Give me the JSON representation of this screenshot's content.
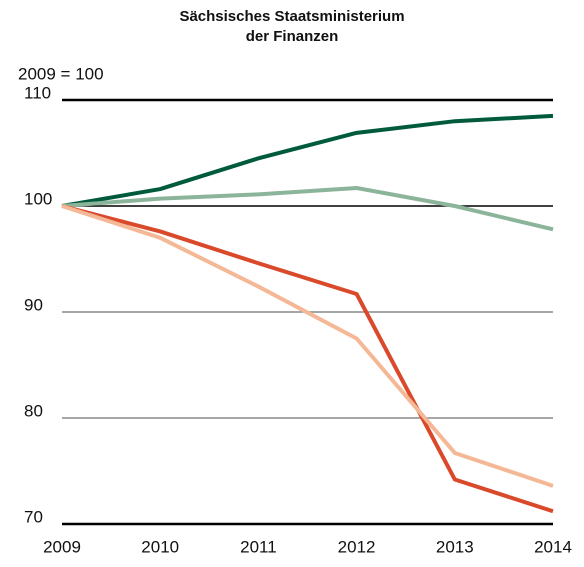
{
  "chart_data": {
    "type": "line",
    "title": [
      "Sächsisches Staatsministerium",
      "der Finanzen"
    ],
    "y_label": "2009 = 100",
    "x": [
      2009,
      2010,
      2011,
      2012,
      2013,
      2014
    ],
    "xlim": [
      2009,
      2014
    ],
    "xticks": [
      2009,
      2010,
      2011,
      2012,
      2013,
      2014
    ],
    "ylim": [
      70,
      110
    ],
    "yticks": [
      70,
      80,
      90,
      100,
      110
    ],
    "grid": true,
    "series": [
      {
        "color": "#005a3c",
        "values": [
          100,
          101.6,
          104.5,
          106.9,
          108.0,
          108.5
        ]
      },
      {
        "color": "#8cb49b",
        "values": [
          100,
          100.7,
          101.1,
          101.7,
          100.0,
          97.8
        ]
      },
      {
        "color": "#d9492a",
        "values": [
          100,
          97.6,
          94.6,
          91.7,
          74.2,
          71.2
        ]
      },
      {
        "color": "#f5b896",
        "values": [
          100,
          97.0,
          92.4,
          87.5,
          76.7,
          73.6
        ]
      }
    ]
  }
}
